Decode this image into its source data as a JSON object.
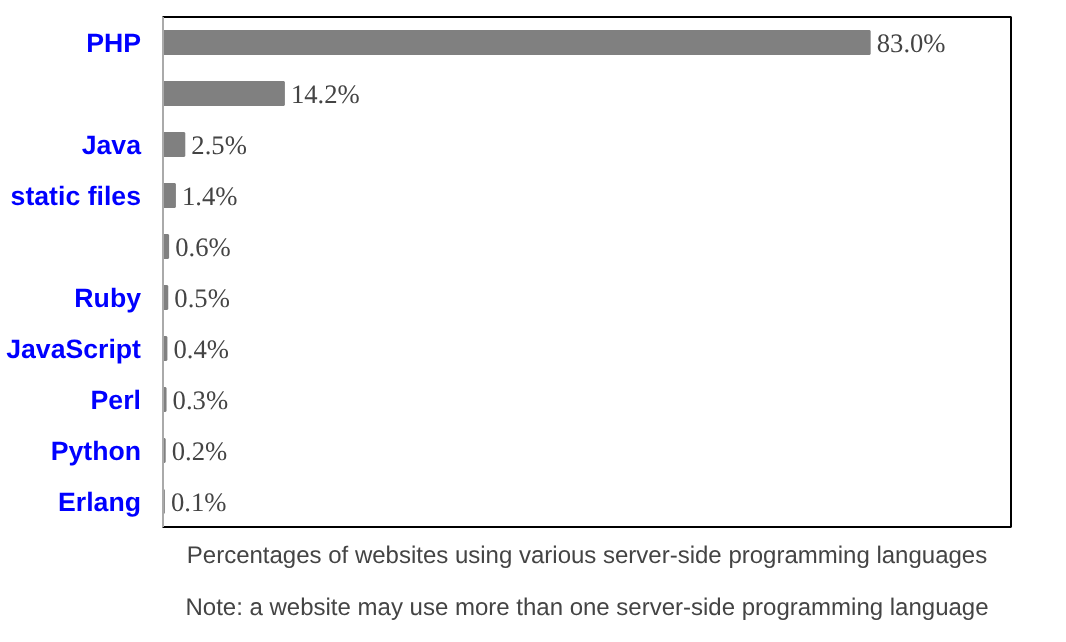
{
  "chart_data": {
    "type": "bar",
    "orientation": "horizontal",
    "categories": [
      "PHP",
      null,
      "Java",
      "static files",
      null,
      "Ruby",
      "JavaScript",
      "Perl",
      "Python",
      "Erlang"
    ],
    "values": [
      83.0,
      14.2,
      2.5,
      1.4,
      0.6,
      0.5,
      0.4,
      0.3,
      0.2,
      0.1
    ],
    "value_labels": [
      "83.0%",
      "14.2%",
      "2.5%",
      "1.4%",
      "0.6%",
      "0.5%",
      "0.4%",
      "0.3%",
      "0.2%",
      "0.1%"
    ],
    "color": "#808080",
    "annotations": [
      "Percentages of websites using various server-side programming languages",
      "Note: a website may use more than one server-side programming language"
    ]
  }
}
